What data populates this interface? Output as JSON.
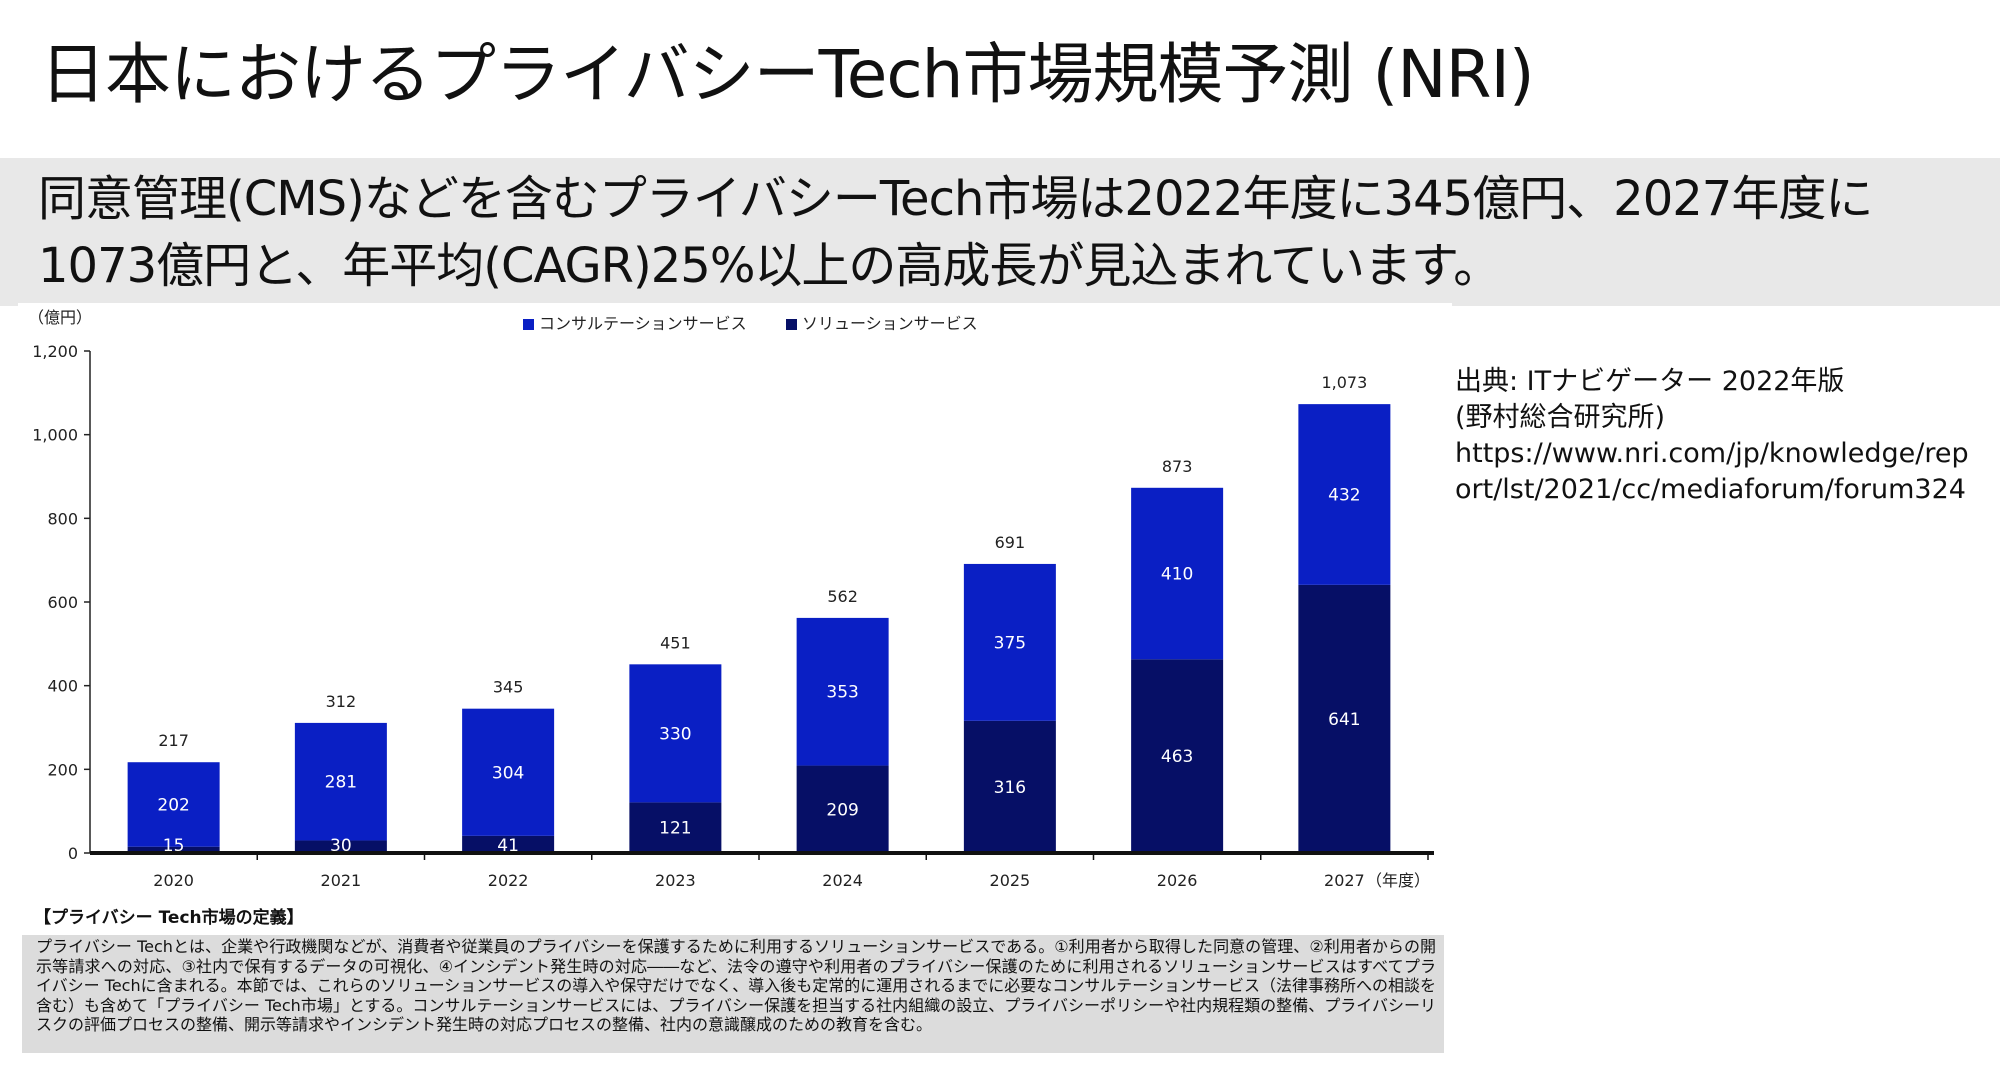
{
  "title": "日本におけるプライバシーTech市場規模予測 (NRI)",
  "subtitle": "同意管理(CMS)などを含むプライバシーTech市場は2022年度に345億円、2027年度に1073億円と、年平均(CAGR)25%以上の高成長が見込まれています。",
  "source": {
    "line1": "出典: ITナビゲーター 2022年版",
    "line2": "(野村総合研究所)",
    "url": "https://www.nri.com/jp/knowledge/report/lst/2021/cc/mediaforum/forum324"
  },
  "definition": {
    "heading": "【プライバシー Tech市場の定義】",
    "body": "プライバシー Techとは、企業や行政機関などが、消費者や従業員のプライバシーを保護するために利用するソリューションサービスである。①利用者から取得した同意の管理、②利用者からの開示等請求への対応、③社内で保有するデータの可視化、④インシデント発生時の対応――など、法令の遵守や利用者のプライバシー保護のために利用されるソリューションサービスはすべてプライバシー Techに含まれる。本節では、これらのソリューションサービスの導入や保守だけでなく、導入後も定常的に運用されるまでに必要なコンサルテーションサービス（法律事務所への相談を含む）も含めて「プライバシー Tech市場」とする。コンサルテーションサービスには、プライバシー保護を担当する社内組織の設立、プライバシーポリシーや社内規程類の整備、プライバシーリスクの評価プロセスの整備、開示等請求やインシデント発生時の対応プロセスの整備、社内の意識醸成のための教育を含む。"
  },
  "colors": {
    "consulting": "#0a1fc4",
    "solution": "#060f66",
    "subtitle_band": "#e8e8e8"
  },
  "chart_data": {
    "type": "bar",
    "stacked": true,
    "ylabel": "（億円）",
    "xlabel": "（年度）",
    "ylim": [
      0,
      1200
    ],
    "yticks": [
      "0",
      "200",
      "400",
      "600",
      "800",
      "1,000",
      "1,200"
    ],
    "ytick_values": [
      0,
      200,
      400,
      600,
      800,
      1000,
      1200
    ],
    "categories": [
      "2020",
      "2021",
      "2022",
      "2023",
      "2024",
      "2025",
      "2026",
      "2027"
    ],
    "series": [
      {
        "name": "ソリューションサービス",
        "values": [
          15,
          30,
          41,
          121,
          209,
          316,
          463,
          641
        ],
        "color": "#060f66"
      },
      {
        "name": "コンサルテーションサービス",
        "values": [
          202,
          281,
          304,
          330,
          353,
          375,
          410,
          432
        ],
        "color": "#0a1fc4"
      }
    ],
    "totals": [
      "217",
      "312",
      "345",
      "451",
      "562",
      "691",
      "873",
      "1,073"
    ],
    "total_values": [
      217,
      312,
      345,
      451,
      562,
      691,
      873,
      1073
    ],
    "legend": [
      "コンサルテーションサービス",
      "ソリューションサービス"
    ],
    "legend_position": "top",
    "grid": false
  }
}
